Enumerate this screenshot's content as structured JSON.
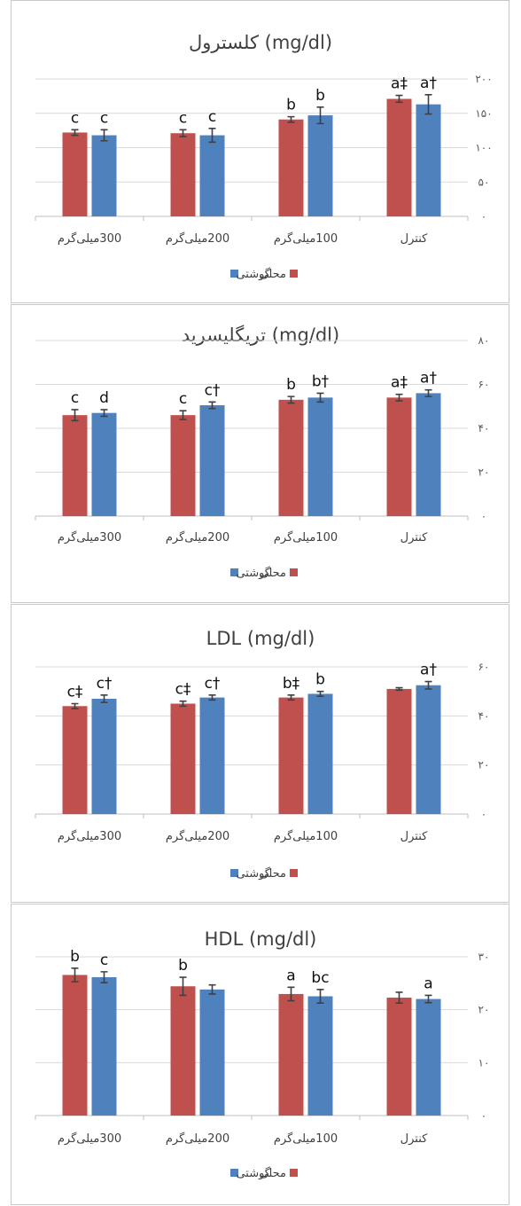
{
  "colors": {
    "series_red": "#c0504d",
    "series_blue": "#4f81bd"
  },
  "chart_data": [
    {
      "type": "bar",
      "title": "کلسترول (mg/dl)",
      "categories": [
        "300میلی‌گرم",
        "200میلی‌گرم",
        "100میلی‌گرم",
        "کنترل"
      ],
      "yticks": [
        "۰",
        "۵۰",
        "۱۰۰",
        "۱۵۰",
        "۲۰۰"
      ],
      "ylim": [
        0,
        200
      ],
      "grid": true,
      "legend": "bottom",
      "series": [
        {
          "name": "محلی",
          "color": "#c0504d",
          "values": [
            122,
            121,
            141,
            171
          ],
          "errors": [
            4,
            5,
            4,
            5
          ],
          "labels": [
            "c",
            "c",
            "b",
            "a‡"
          ]
        },
        {
          "name": "گوشتی",
          "color": "#4f81bd",
          "values": [
            118,
            118,
            147,
            163
          ],
          "errors": [
            8,
            10,
            12,
            14
          ],
          "labels": [
            "c",
            "c",
            "b",
            "a†"
          ]
        }
      ]
    },
    {
      "type": "bar",
      "title": "تریگلیسرید (mg/dl)",
      "categories": [
        "300میلی‌گرم",
        "200میلی‌گرم",
        "100میلی‌گرم",
        "کنترل"
      ],
      "yticks": [
        "۰",
        "۲۰",
        "۴۰",
        "۶۰",
        "۸۰"
      ],
      "ylim": [
        0,
        80
      ],
      "grid": true,
      "legend": "bottom",
      "series": [
        {
          "name": "محلی",
          "color": "#c0504d",
          "values": [
            46,
            46,
            53,
            54
          ],
          "errors": [
            2.5,
            2,
            1.5,
            1.5
          ],
          "labels": [
            "c",
            "c",
            "b",
            "a‡"
          ]
        },
        {
          "name": "گوشتی",
          "color": "#4f81bd",
          "values": [
            47,
            50.5,
            54,
            56
          ],
          "errors": [
            1.5,
            1.5,
            2,
            1.5
          ],
          "labels": [
            "d",
            "c†",
            "b†",
            "a†"
          ]
        }
      ]
    },
    {
      "type": "bar",
      "title": "LDL (mg/dl)",
      "categories": [
        "300میلی‌گرم",
        "200میلی‌گرم",
        "100میلی‌گرم",
        "کنترل"
      ],
      "yticks": [
        "۰",
        "۲۰",
        "۴۰",
        "۶۰"
      ],
      "ylim": [
        0,
        60
      ],
      "grid": true,
      "legend": "bottom",
      "series": [
        {
          "name": "محلی",
          "color": "#c0504d",
          "values": [
            44,
            45,
            47.5,
            51
          ],
          "errors": [
            1,
            1,
            1,
            0.5
          ],
          "labels": [
            "c‡",
            "c‡",
            "b‡",
            ""
          ]
        },
        {
          "name": "گوشتی",
          "color": "#4f81bd",
          "values": [
            47,
            47.5,
            49,
            52.5
          ],
          "errors": [
            1.5,
            1,
            1,
            1.5
          ],
          "labels": [
            "c†",
            "c†",
            "b",
            "a†"
          ]
        }
      ]
    },
    {
      "type": "bar",
      "title": "HDL (mg/dl)",
      "categories": [
        "300میلی‌گرم",
        "200میلی‌گرم",
        "100میلی‌گرم",
        "کنترل"
      ],
      "yticks": [
        "۰",
        "۱۰",
        "۲۰",
        "۳۰"
      ],
      "ylim": [
        0,
        35
      ],
      "grid": true,
      "legend": "bottom",
      "series": [
        {
          "name": "محلی",
          "color": "#c0504d",
          "values": [
            31,
            28.5,
            26.8,
            26
          ],
          "errors": [
            1.5,
            2,
            1.5,
            1.2
          ],
          "labels": [
            "b",
            "b",
            "a",
            ""
          ]
        },
        {
          "name": "گوشتی",
          "color": "#4f81bd",
          "values": [
            30.5,
            27.8,
            26.3,
            25.7
          ],
          "errors": [
            1.2,
            1,
            1.5,
            0.8
          ],
          "labels": [
            "c",
            "",
            "bc",
            "a"
          ]
        }
      ]
    }
  ]
}
